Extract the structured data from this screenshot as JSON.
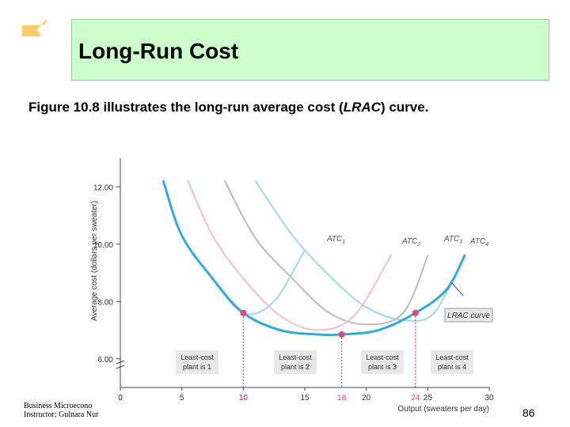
{
  "slide": {
    "title": "Long-Run Cost",
    "caption_start": "Figure 10.8 illustrates the long-run average cost (",
    "caption_italic": "LRAC",
    "caption_end": ") curve.",
    "footer_line1": "Business Microecono",
    "footer_line2": "Instructor: Gulnara Nur",
    "slide_number": "86",
    "colors": {
      "title_bg": "#ccffcc",
      "diamond": "#ffcc66",
      "lrac": "#33aadd",
      "atc1": "#a8d8ea",
      "atc2": "#f4c2cc",
      "atc3": "#bfbfbf",
      "dot": "#e0457b",
      "label_box": "#e8e8e8"
    }
  },
  "chart_data": {
    "type": "line",
    "xlabel": "Output (sweaters per day)",
    "ylabel": "Average cost (dollars per sweater)",
    "xlim": [
      0,
      30
    ],
    "ylim": [
      5,
      13
    ],
    "x_ticks": [
      "0",
      "5",
      "10",
      "15",
      "20",
      "25",
      "30"
    ],
    "x_tick_values": [
      0,
      5,
      10,
      15,
      20,
      25,
      30
    ],
    "y_ticks": [
      "6.00",
      "8.00",
      "10.00",
      "12.00"
    ],
    "y_tick_values": [
      6,
      8,
      10,
      12
    ],
    "marked_x_labels": [
      "10",
      "18",
      "24"
    ],
    "marked_x_values": [
      10,
      18,
      24
    ],
    "series": [
      {
        "name": "ATC1",
        "label_main": "ATC",
        "label_sub": "1",
        "x": [
          3.5,
          5,
          7.5,
          10,
          12.5,
          15
        ],
        "y": [
          12.2,
          10.3,
          8.8,
          7.6,
          8.0,
          9.8
        ]
      },
      {
        "name": "ATC2",
        "label_main": "ATC",
        "label_sub": "2",
        "x": [
          5.5,
          7.5,
          10,
          13,
          16,
          19,
          22
        ],
        "y": [
          12.2,
          10.3,
          8.8,
          7.5,
          7.0,
          7.5,
          9.6
        ]
      },
      {
        "name": "ATC3",
        "label_main": "ATC",
        "label_sub": "3",
        "x": [
          8.5,
          11,
          14,
          17,
          20,
          23,
          25
        ],
        "y": [
          12.2,
          10.2,
          8.8,
          7.6,
          7.2,
          7.6,
          9.6
        ]
      },
      {
        "name": "ATC4",
        "label_main": "ATC",
        "label_sub": "4",
        "x": [
          11,
          14,
          17,
          20,
          23,
          25.5,
          28
        ],
        "y": [
          12.2,
          10.3,
          8.9,
          7.8,
          7.35,
          7.6,
          9.6
        ]
      },
      {
        "name": "LRAC",
        "x": [
          3.5,
          5,
          7.5,
          10,
          13,
          16,
          18,
          21,
          24,
          26.5,
          28
        ],
        "y": [
          12.2,
          10.3,
          8.8,
          7.6,
          7.0,
          6.85,
          6.85,
          7.0,
          7.6,
          8.4,
          9.6
        ]
      }
    ],
    "points": [
      {
        "x": 10,
        "y": 7.6
      },
      {
        "x": 18,
        "y": 6.85
      },
      {
        "x": 24,
        "y": 7.6
      }
    ],
    "callout": "LRAC curve",
    "plant_labels": [
      {
        "line1": "Least-cost",
        "line2": "plant is 1"
      },
      {
        "line1": "Least-cost",
        "line2": "plant is 2"
      },
      {
        "line1": "Least-cost",
        "line2": "plant is 3"
      },
      {
        "line1": "Least-cost",
        "line2": "plant is 4"
      }
    ]
  }
}
